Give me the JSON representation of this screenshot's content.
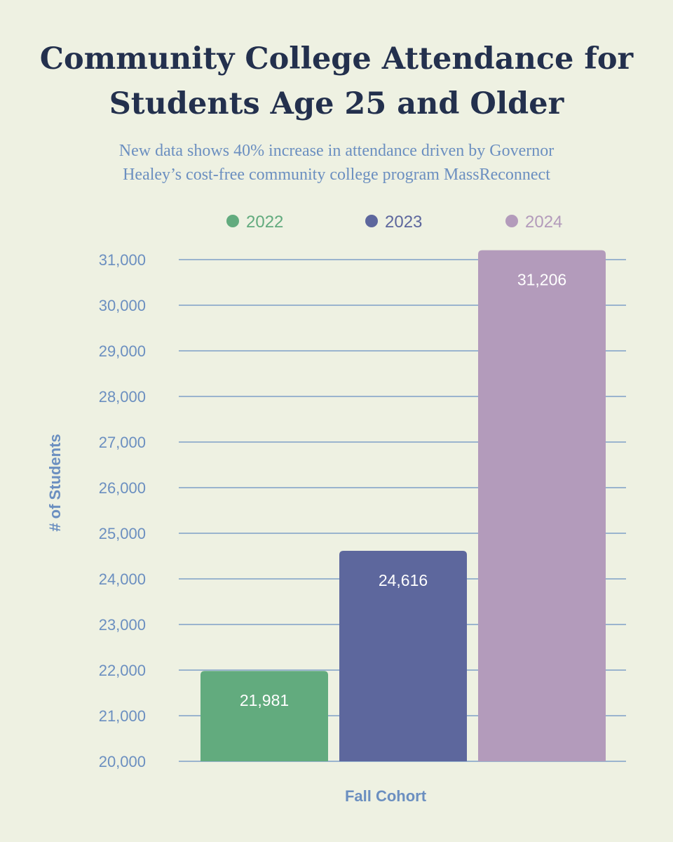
{
  "title_lines": [
    "Community College Attendance for",
    "Students Age 25 and Older"
  ],
  "subtitle_lines": [
    "New data shows 40% increase in attendance driven by Governor",
    "Healey’s cost-free community college program MassReconnect"
  ],
  "colors": {
    "background": "#eef1e2",
    "title": "#23304d",
    "subtitle": "#6b8fc0",
    "axis_text": "#6b8fc0",
    "gridline": "#7e9fc8"
  },
  "chart_data": {
    "type": "bar",
    "title": "Community College Attendance for Students Age 25 and Older",
    "subtitle": "New data shows 40% increase in attendance driven by Governor Healey’s cost-free community college program MassReconnect",
    "xlabel": "Fall Cohort",
    "ylabel": "# of Students",
    "ylim": [
      20000,
      31000
    ],
    "yticks": [
      "20,000",
      "21,000",
      "22,000",
      "23,000",
      "24,000",
      "25,000",
      "26,000",
      "27,000",
      "28,000",
      "29,000",
      "30,000",
      "31,000"
    ],
    "grid": true,
    "legend_position": "top",
    "series": [
      {
        "name": "2022",
        "value": 21981,
        "label": "21,981",
        "color": "#62ab7e"
      },
      {
        "name": "2023",
        "value": 24616,
        "label": "24,616",
        "color": "#5d679d"
      },
      {
        "name": "2024",
        "value": 31206,
        "label": "31,206",
        "color": "#b39bbb"
      }
    ]
  }
}
